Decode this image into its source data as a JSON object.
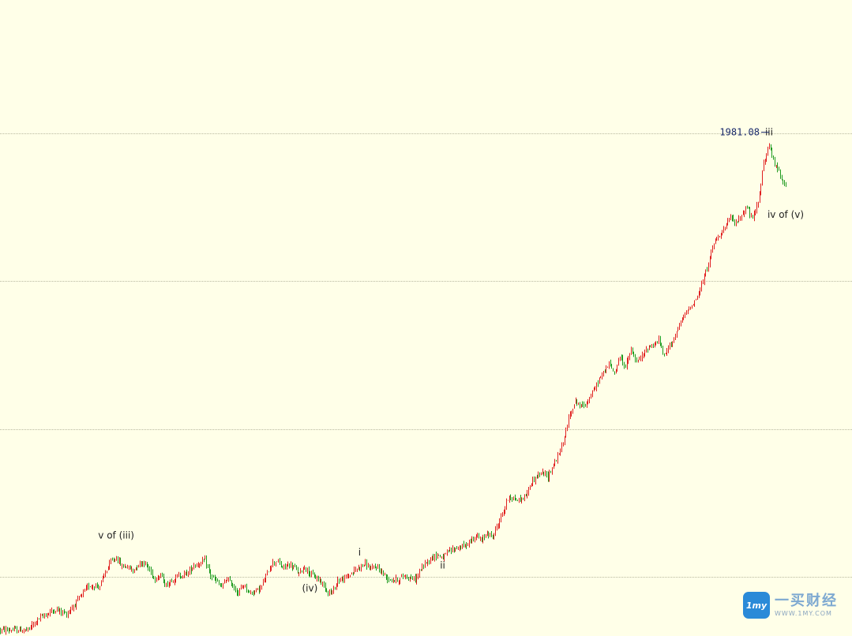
{
  "chart_data": {
    "type": "candlestick",
    "price_label": "1981.08",
    "gridlines": [
      1900,
      1800,
      1700,
      1600
    ],
    "ylim": [
      1560,
      1990
    ],
    "colors": {
      "background": "#FFFFE8",
      "up": "#E02020",
      "down": "#1E9A1E",
      "grid": "#B8B8A0"
    },
    "path": [
      [
        0,
        1564
      ],
      [
        5,
        1564
      ],
      [
        7,
        1572
      ],
      [
        10,
        1578
      ],
      [
        12,
        1575
      ],
      [
        14,
        1584
      ],
      [
        16,
        1594
      ],
      [
        18,
        1594
      ],
      [
        19,
        1603
      ],
      [
        20,
        1610
      ],
      [
        21,
        1613
      ],
      [
        22,
        1607
      ],
      [
        23,
        1607
      ],
      [
        24,
        1604
      ],
      [
        25,
        1609
      ],
      [
        26,
        1610
      ],
      [
        28,
        1599
      ],
      [
        29,
        1601
      ],
      [
        30,
        1594
      ],
      [
        31,
        1598
      ],
      [
        32,
        1600
      ],
      [
        34,
        1603
      ],
      [
        35,
        1608
      ],
      [
        36,
        1609
      ],
      [
        37,
        1611
      ],
      [
        38,
        1601
      ],
      [
        40,
        1593
      ],
      [
        41,
        1599
      ],
      [
        43,
        1589
      ],
      [
        44,
        1595
      ],
      [
        45,
        1589
      ],
      [
        47,
        1592
      ],
      [
        48,
        1600
      ],
      [
        49,
        1609
      ],
      [
        50,
        1611
      ],
      [
        51,
        1606
      ],
      [
        52,
        1608
      ],
      [
        53,
        1607
      ],
      [
        54,
        1602
      ],
      [
        55,
        1607
      ],
      [
        56,
        1602
      ],
      [
        58,
        1597
      ],
      [
        59,
        1591
      ],
      [
        60,
        1589
      ],
      [
        61,
        1598
      ],
      [
        62,
        1598
      ],
      [
        64,
        1604
      ],
      [
        65,
        1607
      ],
      [
        66,
        1609
      ],
      [
        67,
        1605
      ],
      [
        68,
        1607
      ],
      [
        69,
        1603
      ],
      [
        70,
        1599
      ],
      [
        71,
        1598
      ],
      [
        72,
        1598
      ],
      [
        73,
        1601
      ],
      [
        75,
        1598
      ],
      [
        76,
        1605
      ],
      [
        77,
        1610
      ],
      [
        78,
        1613
      ],
      [
        79,
        1615
      ],
      [
        80,
        1613
      ],
      [
        81,
        1617
      ],
      [
        82,
        1619
      ],
      [
        83,
        1620
      ],
      [
        84,
        1621
      ],
      [
        85,
        1624
      ],
      [
        86,
        1628
      ],
      [
        87,
        1624
      ],
      [
        88,
        1630
      ],
      [
        89,
        1627
      ],
      [
        90,
        1636
      ],
      [
        91,
        1645
      ],
      [
        92,
        1655
      ],
      [
        93,
        1652
      ],
      [
        94,
        1652
      ],
      [
        95,
        1655
      ],
      [
        96,
        1664
      ],
      [
        97,
        1668
      ],
      [
        98,
        1670
      ],
      [
        99,
        1668
      ],
      [
        100,
        1676
      ],
      [
        101,
        1683
      ],
      [
        102,
        1694
      ],
      [
        103,
        1711
      ],
      [
        104,
        1719
      ],
      [
        105,
        1715
      ],
      [
        106,
        1718
      ],
      [
        107,
        1724
      ],
      [
        108,
        1732
      ],
      [
        109,
        1738
      ],
      [
        110,
        1744
      ],
      [
        111,
        1738
      ],
      [
        112,
        1749
      ],
      [
        113,
        1742
      ],
      [
        114,
        1753
      ],
      [
        115,
        1745
      ],
      [
        116,
        1749
      ],
      [
        117,
        1755
      ],
      [
        118,
        1757
      ],
      [
        119,
        1760
      ],
      [
        120,
        1749
      ],
      [
        121,
        1757
      ],
      [
        122,
        1763
      ],
      [
        123,
        1772
      ],
      [
        124,
        1779
      ],
      [
        125,
        1784
      ],
      [
        126,
        1789
      ],
      [
        127,
        1800
      ],
      [
        128,
        1812
      ],
      [
        129,
        1826
      ],
      [
        130,
        1832
      ],
      [
        131,
        1836
      ],
      [
        132,
        1843
      ],
      [
        133,
        1839
      ],
      [
        134,
        1845
      ],
      [
        135,
        1850
      ],
      [
        136,
        1841
      ],
      [
        137,
        1854
      ],
      [
        138,
        1880
      ],
      [
        139,
        1891
      ],
      [
        140,
        1879
      ],
      [
        141,
        1872
      ],
      [
        142,
        1864
      ]
    ],
    "labels": [
      {
        "text": "v of (iii)",
        "x": 21,
        "anchor": "above",
        "offset": 24
      },
      {
        "text": "(iv)",
        "x": 56,
        "anchor": "below",
        "offset": 22
      },
      {
        "text": "i",
        "x": 65,
        "anchor": "above",
        "offset": 14
      },
      {
        "text": "ii",
        "x": 80,
        "anchor": "below",
        "offset": 14
      },
      {
        "text": "iii",
        "x": 139,
        "anchor": "above",
        "offset": 14
      },
      {
        "text": "iv of (v)",
        "x": 142,
        "anchor": "below",
        "offset": 40
      }
    ]
  },
  "watermark": {
    "logo_text": "1my",
    "name": "一买财经",
    "url": "WWW.1MY.COM"
  }
}
